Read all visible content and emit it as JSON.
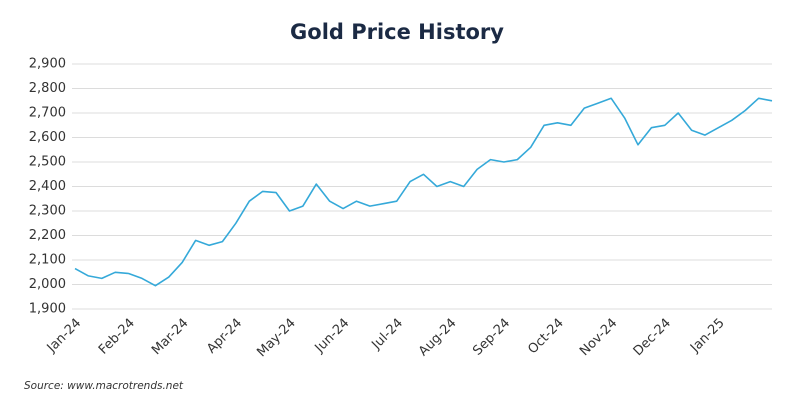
{
  "chart_data": {
    "type": "line",
    "title": "Gold Price History",
    "source": "Source: www.macrotrends.net",
    "categories": [
      "Jan-24",
      null,
      null,
      null,
      "Feb-24",
      null,
      null,
      null,
      "Mar-24",
      null,
      null,
      null,
      "Apr-24",
      null,
      null,
      null,
      "May-24",
      null,
      null,
      null,
      "Jun-24",
      null,
      null,
      null,
      "Jul-24",
      null,
      null,
      null,
      "Aug-24",
      null,
      null,
      null,
      "Sep-24",
      null,
      null,
      null,
      "Oct-24",
      null,
      null,
      null,
      "Nov-24",
      null,
      null,
      null,
      "Dec-24",
      null,
      null,
      null,
      "Jan-25",
      null,
      null,
      null,
      null
    ],
    "values": [
      2065,
      2035,
      2025,
      2050,
      2045,
      2025,
      1995,
      2030,
      2090,
      2180,
      2160,
      2175,
      2250,
      2340,
      2380,
      2375,
      2300,
      2320,
      2410,
      2340,
      2310,
      2340,
      2320,
      2330,
      2340,
      2420,
      2450,
      2400,
      2420,
      2400,
      2470,
      2510,
      2500,
      2510,
      2560,
      2650,
      2660,
      2650,
      2720,
      2740,
      2760,
      2680,
      2570,
      2640,
      2650,
      2700,
      2630,
      2610,
      2640,
      2670,
      2710,
      2760,
      2750
    ],
    "color": "#35a9d9",
    "ylim": [
      1900,
      2900
    ],
    "yticks": [
      {
        "value": 1900,
        "label": "1,900"
      },
      {
        "value": 2000,
        "label": "2,000"
      },
      {
        "value": 2100,
        "label": "2,100"
      },
      {
        "value": 2200,
        "label": "2,200"
      },
      {
        "value": 2300,
        "label": "2,300"
      },
      {
        "value": 2400,
        "label": "2,400"
      },
      {
        "value": 2500,
        "label": "2,500"
      },
      {
        "value": 2600,
        "label": "2,600"
      },
      {
        "value": 2700,
        "label": "2,700"
      },
      {
        "value": 2800,
        "label": "2,800"
      },
      {
        "value": 2900,
        "label": "2,900"
      }
    ],
    "grid": true
  }
}
